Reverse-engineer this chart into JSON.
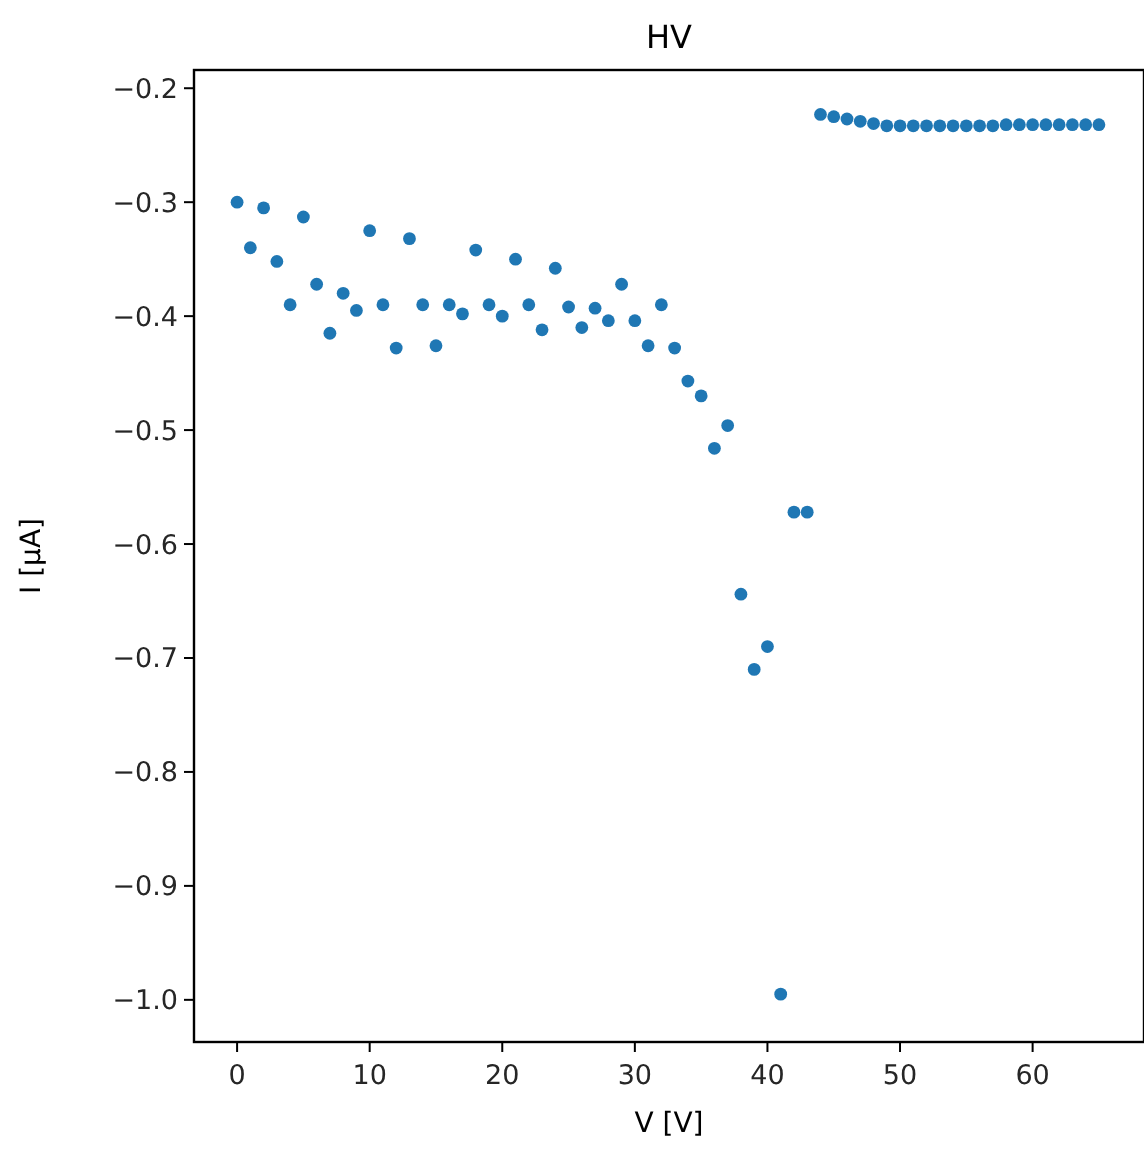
{
  "chart_data": {
    "type": "scatter",
    "title": "HV",
    "xlabel": "V [V]",
    "ylabel": "I [μA]",
    "x": [
      0,
      1,
      2,
      3,
      4,
      5,
      6,
      7,
      8,
      9,
      10,
      11,
      12,
      13,
      14,
      15,
      16,
      17,
      18,
      19,
      20,
      21,
      22,
      23,
      24,
      25,
      26,
      27,
      28,
      29,
      30,
      31,
      32,
      33,
      34,
      35,
      36,
      37,
      38,
      39,
      40,
      41,
      42,
      43,
      44,
      45,
      46,
      47,
      48,
      49,
      50,
      51,
      52,
      53,
      54,
      55,
      56,
      57,
      58,
      59,
      60,
      61,
      62,
      63,
      64,
      65
    ],
    "series": [
      {
        "color": "#1f77b4",
        "values": [
          -0.3,
          -0.34,
          -0.305,
          -0.352,
          -0.39,
          -0.313,
          -0.372,
          -0.415,
          -0.38,
          -0.395,
          -0.325,
          -0.39,
          -0.428,
          -0.332,
          -0.39,
          -0.426,
          -0.39,
          -0.398,
          -0.342,
          -0.39,
          -0.4,
          -0.35,
          -0.39,
          -0.412,
          -0.358,
          -0.392,
          -0.41,
          -0.393,
          -0.404,
          -0.372,
          -0.404,
          -0.426,
          -0.39,
          -0.428,
          -0.457,
          -0.47,
          -0.516,
          -0.496,
          -0.644,
          -0.71,
          -0.69,
          -0.995,
          -0.572,
          -0.572,
          -0.223,
          -0.225,
          -0.227,
          -0.229,
          -0.231,
          -0.233,
          -0.233,
          -0.233,
          -0.233,
          -0.233,
          -0.233,
          -0.233,
          -0.233,
          -0.233,
          -0.232,
          -0.232,
          -0.232,
          -0.232,
          -0.232,
          -0.232,
          -0.232,
          -0.232
        ]
      }
    ],
    "marker": "circle",
    "xlim": [
      -3.25,
      68.25
    ],
    "xticks": [
      0,
      10,
      20,
      30,
      40,
      50,
      60
    ],
    "ylim": [
      -1.037,
      -0.184
    ],
    "yticks": [
      {
        "value": -1,
        "label": "−1.0"
      },
      -0.9,
      -0.8,
      -0.7,
      -0.6,
      -0.5,
      -0.4,
      -0.3,
      -0.2
    ]
  }
}
